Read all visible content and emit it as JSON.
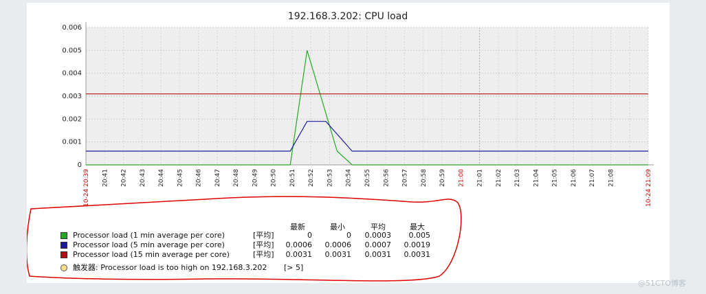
{
  "chart_data": {
    "type": "line",
    "title": "192.168.3.202: CPU load",
    "ylim": [
      0,
      0.006
    ],
    "y_ticks": [
      "0",
      "0.001",
      "0.002",
      "0.003",
      "0.004",
      "0.005",
      "0.006"
    ],
    "x_tick_labels": [
      "20:41",
      "20:42",
      "20:43",
      "20:44",
      "20:45",
      "20:46",
      "20:47",
      "20:48",
      "20:49",
      "20:50",
      "20:51",
      "20:52",
      "20:53",
      "20:54",
      "20:55",
      "20:56",
      "20:57",
      "20:58",
      "20:59",
      "21:00",
      "21:01",
      "21:02",
      "21:03",
      "21:04",
      "21:05",
      "21:06",
      "21:07",
      "21:08"
    ],
    "x_start_label": "10-24 20:39",
    "x_end_label": "10-24 21:09",
    "grid": true,
    "series": [
      {
        "name": "Processor load (1 min average per core)",
        "color": "#22aa22",
        "x": [
          0,
          10.9,
          11.8,
          13.4,
          14.2,
          30
        ],
        "values": [
          0,
          0,
          0.005,
          0.0006,
          0,
          0
        ]
      },
      {
        "name": "Processor load (5 min average per core)",
        "color": "#1a1a99",
        "x": [
          0,
          10.9,
          11.8,
          12.8,
          14.2,
          30
        ],
        "values": [
          0.0006,
          0.0006,
          0.0019,
          0.0019,
          0.0006,
          0.0006
        ]
      },
      {
        "name": "Processor load (15 min average per core)",
        "color": "#b01010",
        "x": [
          0,
          30
        ],
        "values": [
          0.0031,
          0.0031
        ]
      }
    ]
  },
  "legend": {
    "headers": [
      "最新",
      "最小",
      "平均",
      "最大"
    ],
    "rows": [
      {
        "name": "Processor load (1 min average per core)",
        "func": "[平均]",
        "last": "0",
        "min": "0",
        "avg": "0.0003",
        "max": "0.005",
        "color": "#22aa22"
      },
      {
        "name": "Processor load (5 min average per core)",
        "func": "[平均]",
        "last": "0.0006",
        "min": "0.0006",
        "avg": "0.0007",
        "max": "0.0019",
        "color": "#1a1a99"
      },
      {
        "name": "Processor load (15 min average per core)",
        "func": "[平均]",
        "last": "0.0031",
        "min": "0.0031",
        "avg": "0.0031",
        "max": "0.0031",
        "color": "#b01010"
      }
    ],
    "trigger": {
      "text": "触发器: Processor load is too high on 192.168.3.202",
      "cond": "[> 5]"
    }
  },
  "watermark": "@51CTO博客"
}
